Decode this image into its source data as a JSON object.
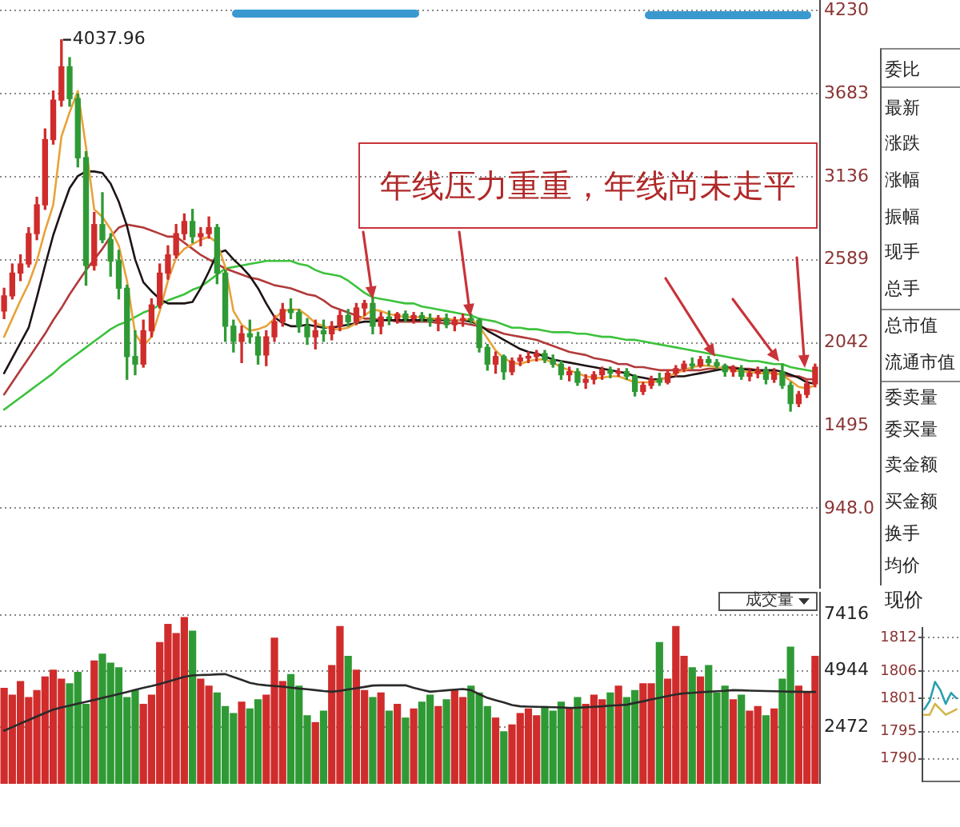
{
  "chart_data": [
    {
      "type": "candlestick",
      "categories": [
        null,
        null,
        null,
        null,
        null,
        null,
        null,
        null,
        null,
        null,
        null,
        null,
        null,
        null,
        null,
        null,
        null,
        null,
        null,
        null,
        null,
        null,
        null,
        null,
        null,
        null,
        null,
        null,
        null,
        null,
        null,
        null,
        null,
        null,
        null,
        null,
        null,
        null,
        null,
        null,
        null,
        null,
        null,
        null,
        null,
        null,
        null,
        null,
        null,
        null,
        null,
        null,
        null,
        null,
        null,
        null,
        null,
        null,
        null,
        null,
        null,
        null,
        null,
        null,
        null,
        null,
        null,
        null,
        null,
        null,
        null,
        null,
        null,
        null,
        null,
        null,
        null,
        null,
        null,
        null,
        null,
        null,
        null,
        null,
        null,
        null,
        null,
        null,
        null,
        null,
        null,
        null,
        null,
        null,
        null,
        null,
        null,
        null,
        null,
        null
      ],
      "ohlc": [
        [
          2250,
          2400,
          2200,
          2350
        ],
        [
          2350,
          2560,
          2330,
          2500
        ],
        [
          2500,
          2620,
          2450,
          2560
        ],
        [
          2560,
          2800,
          2540,
          2760
        ],
        [
          2760,
          3000,
          2720,
          2950
        ],
        [
          2950,
          3450,
          2920,
          3380
        ],
        [
          3380,
          3700,
          3350,
          3640
        ],
        [
          3640,
          4037.96,
          3600,
          3860
        ],
        [
          3860,
          3920,
          3600,
          3650
        ],
        [
          3650,
          3680,
          3200,
          3260
        ],
        [
          3260,
          3300,
          2420,
          2550
        ],
        [
          2550,
          2900,
          2520,
          2820
        ],
        [
          2820,
          3030,
          2700,
          2720
        ],
        [
          2720,
          2760,
          2480,
          2580
        ],
        [
          2580,
          2650,
          2330,
          2400
        ],
        [
          2400,
          2420,
          1800,
          1950
        ],
        [
          1950,
          2120,
          1830,
          1900
        ],
        [
          1900,
          2190,
          1880,
          2120
        ],
        [
          2120,
          2330,
          2080,
          2290
        ],
        [
          2290,
          2560,
          2270,
          2500
        ],
        [
          2500,
          2680,
          2460,
          2620
        ],
        [
          2620,
          2820,
          2600,
          2760
        ],
        [
          2760,
          2890,
          2720,
          2840
        ],
        [
          2840,
          2920,
          2700,
          2740
        ],
        [
          2740,
          2800,
          2680,
          2760
        ],
        [
          2760,
          2870,
          2730,
          2800
        ],
        [
          2800,
          2820,
          2430,
          2500
        ],
        [
          2500,
          2520,
          2050,
          2150
        ],
        [
          2150,
          2190,
          1980,
          2050
        ],
        [
          2050,
          2150,
          1910,
          2100
        ],
        [
          2100,
          2190,
          2040,
          2080
        ],
        [
          2080,
          2110,
          1900,
          1960
        ],
        [
          1960,
          2120,
          1890,
          2080
        ],
        [
          2080,
          2220,
          2050,
          2180
        ],
        [
          2180,
          2300,
          2150,
          2260
        ],
        [
          2260,
          2330,
          2200,
          2240
        ],
        [
          2240,
          2260,
          2110,
          2150
        ],
        [
          2150,
          2200,
          2030,
          2080
        ],
        [
          2080,
          2190,
          2000,
          2120
        ],
        [
          2120,
          2190,
          2050,
          2100
        ],
        [
          2100,
          2180,
          2060,
          2150
        ],
        [
          2150,
          2250,
          2120,
          2220
        ],
        [
          2220,
          2260,
          2150,
          2180
        ],
        [
          2180,
          2300,
          2160,
          2270
        ],
        [
          2270,
          2320,
          2220,
          2300
        ],
        [
          2300,
          2340,
          2100,
          2150
        ],
        [
          2150,
          2240,
          2100,
          2210
        ],
        [
          2210,
          2250,
          2160,
          2200
        ],
        [
          2200,
          2240,
          2170,
          2230
        ],
        [
          2230,
          2250,
          2180,
          2200
        ],
        [
          2200,
          2240,
          2170,
          2220
        ],
        [
          2220,
          2240,
          2180,
          2200
        ],
        [
          2200,
          2230,
          2150,
          2180
        ],
        [
          2180,
          2220,
          2120,
          2200
        ],
        [
          2200,
          2230,
          2140,
          2160
        ],
        [
          2160,
          2210,
          2120,
          2190
        ],
        [
          2190,
          2230,
          2150,
          2200
        ],
        [
          2200,
          2230,
          2170,
          2190
        ],
        [
          2190,
          2200,
          1980,
          2010
        ],
        [
          2010,
          2030,
          1860,
          1900
        ],
        [
          1900,
          1980,
          1840,
          1950
        ],
        [
          1950,
          1960,
          1800,
          1850
        ],
        [
          1850,
          1940,
          1830,
          1920
        ],
        [
          1920,
          1960,
          1890,
          1940
        ],
        [
          1940,
          1980,
          1910,
          1950
        ],
        [
          1950,
          1990,
          1920,
          1970
        ],
        [
          1970,
          1990,
          1910,
          1930
        ],
        [
          1930,
          1960,
          1880,
          1900
        ],
        [
          1900,
          1920,
          1800,
          1830
        ],
        [
          1830,
          1880,
          1790,
          1850
        ],
        [
          1850,
          1870,
          1760,
          1780
        ],
        [
          1780,
          1830,
          1740,
          1800
        ],
        [
          1800,
          1850,
          1770,
          1830
        ],
        [
          1830,
          1880,
          1800,
          1860
        ],
        [
          1860,
          1880,
          1810,
          1840
        ],
        [
          1840,
          1870,
          1820,
          1850
        ],
        [
          1850,
          1870,
          1800,
          1820
        ],
        [
          1820,
          1830,
          1690,
          1720
        ],
        [
          1720,
          1780,
          1700,
          1760
        ],
        [
          1760,
          1820,
          1740,
          1800
        ],
        [
          1800,
          1840,
          1760,
          1780
        ],
        [
          1780,
          1860,
          1770,
          1840
        ],
        [
          1840,
          1890,
          1820,
          1870
        ],
        [
          1870,
          1920,
          1850,
          1900
        ],
        [
          1900,
          1940,
          1870,
          1890
        ],
        [
          1890,
          1950,
          1880,
          1930
        ],
        [
          1930,
          1950,
          1890,
          1910
        ],
        [
          1910,
          1930,
          1870,
          1890
        ],
        [
          1890,
          1900,
          1820,
          1850
        ],
        [
          1850,
          1890,
          1820,
          1870
        ],
        [
          1870,
          1890,
          1800,
          1820
        ],
        [
          1820,
          1860,
          1790,
          1840
        ],
        [
          1840,
          1880,
          1810,
          1860
        ],
        [
          1860,
          1880,
          1770,
          1800
        ],
        [
          1800,
          1870,
          1780,
          1850
        ],
        [
          1850,
          1900,
          1740,
          1760
        ],
        [
          1760,
          1780,
          1590,
          1640
        ],
        [
          1640,
          1720,
          1620,
          1700
        ],
        [
          1700,
          1790,
          1680,
          1770
        ],
        [
          1770,
          1900,
          1750,
          1880
        ]
      ],
      "colors": [
        "#d02c2c",
        "#d02c2c",
        "#d02c2c",
        "#d02c2c",
        "#d02c2c",
        "#d02c2c",
        "#d02c2c",
        "#d02c2c",
        "#2f9a35",
        "#2f9a35",
        "#2f9a35",
        "#d02c2c",
        "#2f9a35",
        "#2f9a35",
        "#2f9a35",
        "#2f9a35",
        "#2f9a35",
        "#d02c2c",
        "#d02c2c",
        "#d02c2c",
        "#d02c2c",
        "#d02c2c",
        "#d02c2c",
        "#2f9a35",
        "#d02c2c",
        "#d02c2c",
        "#2f9a35",
        "#2f9a35",
        "#2f9a35",
        "#d02c2c",
        "#2f9a35",
        "#2f9a35",
        "#d02c2c",
        "#d02c2c",
        "#d02c2c",
        "#2f9a35",
        "#2f9a35",
        "#2f9a35",
        "#d02c2c",
        "#2f9a35",
        "#d02c2c",
        "#d02c2c",
        "#2f9a35",
        "#d02c2c",
        "#d02c2c",
        "#2f9a35",
        "#d02c2c",
        "#2f9a35",
        "#d02c2c",
        "#2f9a35",
        "#d02c2c",
        "#2f9a35",
        "#2f9a35",
        "#d02c2c",
        "#2f9a35",
        "#d02c2c",
        "#d02c2c",
        "#2f9a35",
        "#2f9a35",
        "#2f9a35",
        "#d02c2c",
        "#2f9a35",
        "#d02c2c",
        "#d02c2c",
        "#d02c2c",
        "#d02c2c",
        "#2f9a35",
        "#2f9a35",
        "#2f9a35",
        "#d02c2c",
        "#2f9a35",
        "#d02c2c",
        "#d02c2c",
        "#d02c2c",
        "#2f9a35",
        "#d02c2c",
        "#2f9a35",
        "#2f9a35",
        "#d02c2c",
        "#d02c2c",
        "#2f9a35",
        "#d02c2c",
        "#d02c2c",
        "#d02c2c",
        "#2f9a35",
        "#d02c2c",
        "#2f9a35",
        "#2f9a35",
        "#2f9a35",
        "#d02c2c",
        "#2f9a35",
        "#d02c2c",
        "#d02c2c",
        "#2f9a35",
        "#d02c2c",
        "#2f9a35",
        "#2f9a35",
        "#d02c2c",
        "#d02c2c",
        "#d02c2c"
      ],
      "series": [
        {
          "type": "line",
          "color": "#e8a23a",
          "values": [
            2080,
            2200,
            2320,
            2430,
            2580,
            2780,
            2950,
            3400,
            3560,
            3700,
            3330,
            2920,
            2870,
            2790,
            2680,
            2450,
            2100,
            2020,
            2080,
            2250,
            2450,
            2600,
            2660,
            2690,
            2720,
            2740,
            2700,
            2540,
            2250,
            2160,
            2120,
            2130,
            2150,
            2200,
            2250,
            2260,
            2260,
            2220,
            2170,
            2150,
            2130,
            2130,
            2140,
            2170,
            2220,
            2260,
            2250,
            2230,
            2220,
            2210,
            2210,
            2210,
            2200,
            2200,
            2200,
            2190,
            2190,
            2200,
            2150,
            2070,
            1990,
            1940,
            1910,
            1900,
            1920,
            1930,
            1930,
            1910,
            1880,
            1860,
            1840,
            1820,
            1810,
            1810,
            1820,
            1820,
            1800,
            1780,
            1780,
            1780,
            1790,
            1820,
            1840,
            1860,
            1880,
            1890,
            1890,
            1880,
            1870,
            1860,
            1850,
            1850,
            1840,
            1840,
            1840,
            1830,
            1790,
            1750,
            1740,
            1760
          ]
        },
        {
          "type": "line",
          "color": "#1e1414",
          "values": [
            1840,
            1940,
            2040,
            2140,
            2340,
            2550,
            2750,
            2910,
            3060,
            3140,
            3170,
            3170,
            3160,
            3090,
            2970,
            2810,
            2590,
            2440,
            2380,
            2330,
            2300,
            2300,
            2300,
            2310,
            2400,
            2510,
            2630,
            2650,
            2590,
            2540,
            2480,
            2400,
            2300,
            2210,
            2170,
            2150,
            2150,
            2160,
            2150,
            2140,
            2140,
            2150,
            2160,
            2170,
            2180,
            2180,
            2190,
            2190,
            2190,
            2190,
            2190,
            2190,
            2190,
            2190,
            2190,
            2190,
            2190,
            2180,
            2160,
            2120,
            2090,
            2060,
            2030,
            2000,
            1980,
            1970,
            1950,
            1930,
            1920,
            1910,
            1900,
            1890,
            1880,
            1870,
            1860,
            1850,
            1840,
            1820,
            1810,
            1800,
            1800,
            1810,
            1820,
            1820,
            1830,
            1840,
            1850,
            1860,
            1870,
            1870,
            1870,
            1860,
            1860,
            1860,
            1860,
            1850,
            1830,
            1810,
            1780,
            1770
          ]
        },
        {
          "type": "line",
          "color": "#b23a3a",
          "values": [
            1700,
            1780,
            1860,
            1940,
            2020,
            2100,
            2190,
            2270,
            2360,
            2440,
            2520,
            2590,
            2660,
            2740,
            2800,
            2820,
            2810,
            2800,
            2780,
            2760,
            2740,
            2740,
            2700,
            2660,
            2620,
            2590,
            2560,
            2530,
            2510,
            2490,
            2470,
            2460,
            2440,
            2420,
            2410,
            2400,
            2380,
            2360,
            2350,
            2320,
            2280,
            2260,
            2240,
            2220,
            2200,
            2200,
            2190,
            2190,
            2180,
            2180,
            2180,
            2180,
            2180,
            2170,
            2170,
            2170,
            2170,
            2160,
            2150,
            2130,
            2120,
            2100,
            2090,
            2080,
            2070,
            2060,
            2040,
            2020,
            2000,
            1980,
            1970,
            1960,
            1940,
            1930,
            1920,
            1900,
            1900,
            1880,
            1880,
            1870,
            1860,
            1860,
            1860,
            1860,
            1860,
            1860,
            1870,
            1870,
            1880,
            1880,
            1870,
            1870,
            1860,
            1850,
            1840,
            1830,
            1820,
            1820,
            1800,
            1800
          ]
        },
        {
          "type": "line",
          "color": "#3cc23c",
          "values": [
            1600,
            1640,
            1680,
            1720,
            1760,
            1800,
            1840,
            1890,
            1930,
            1970,
            2010,
            2050,
            2090,
            2130,
            2160,
            2180,
            2210,
            2240,
            2260,
            2290,
            2320,
            2340,
            2360,
            2390,
            2410,
            2450,
            2490,
            2530,
            2540,
            2550,
            2560,
            2570,
            2580,
            2580,
            2580,
            2580,
            2560,
            2550,
            2520,
            2500,
            2490,
            2480,
            2450,
            2410,
            2370,
            2340,
            2330,
            2320,
            2310,
            2300,
            2300,
            2280,
            2270,
            2260,
            2250,
            2240,
            2230,
            2220,
            2200,
            2190,
            2180,
            2160,
            2140,
            2140,
            2130,
            2130,
            2120,
            2110,
            2110,
            2110,
            2100,
            2100,
            2090,
            2080,
            2080,
            2070,
            2060,
            2060,
            2050,
            2040,
            2030,
            2020,
            2010,
            2000,
            1990,
            1980,
            1970,
            1960,
            1950,
            1940,
            1930,
            1920,
            1920,
            1910,
            1900,
            1900,
            1880,
            1870,
            1860,
            1850
          ]
        }
      ],
      "ylim": [
        420,
        4300
      ],
      "yticks": [
        {
          "value": 948,
          "label": "948.0"
        },
        1495,
        2042,
        2589,
        3136,
        3683,
        4230
      ],
      "grid": "y",
      "annotations": [
        "4037.96",
        "年线压力重重，年线尚未走平"
      ]
    },
    {
      "type": "bar",
      "title": "成交量",
      "categories": [
        null,
        null,
        null,
        null,
        null,
        null,
        null,
        null,
        null,
        null,
        null,
        null,
        null,
        null,
        null,
        null,
        null,
        null,
        null,
        null,
        null,
        null,
        null,
        null,
        null,
        null,
        null,
        null,
        null,
        null,
        null,
        null,
        null,
        null,
        null,
        null,
        null,
        null,
        null,
        null,
        null,
        null,
        null,
        null,
        null,
        null,
        null,
        null,
        null,
        null,
        null,
        null,
        null,
        null,
        null,
        null,
        null,
        null,
        null,
        null,
        null,
        null,
        null,
        null,
        null,
        null,
        null,
        null,
        null,
        null,
        null,
        null,
        null,
        null,
        null,
        null,
        null,
        null,
        null,
        null,
        null,
        null,
        null,
        null,
        null,
        null,
        null,
        null,
        null,
        null,
        null,
        null,
        null,
        null,
        null,
        null,
        null,
        null,
        null,
        null
      ],
      "series": [
        {
          "type": "bar",
          "values": [
            4200,
            3900,
            4500,
            3800,
            4100,
            4700,
            5000,
            4600,
            4400,
            4900,
            3500,
            5400,
            5700,
            5300,
            5100,
            3800,
            4100,
            3500,
            3900,
            6200,
            7000,
            6600,
            7300,
            6700,
            4600,
            4300,
            4000,
            3400,
            3100,
            3600,
            3300,
            3700,
            3900,
            6400,
            4500,
            4800,
            4300,
            3000,
            2700,
            3200,
            5200,
            6900,
            5600,
            5000,
            4100,
            3800,
            4000,
            3200,
            3500,
            2900,
            3300,
            3600,
            3900,
            3400,
            3700,
            4100,
            3800,
            4300,
            4000,
            3400,
            2900,
            2300,
            2600,
            3100,
            3300,
            3000,
            3400,
            3200,
            3600,
            3300,
            3800,
            3500,
            3900,
            3700,
            4000,
            4300,
            3800,
            4100,
            4400,
            4400,
            6200,
            4600,
            6900,
            5600,
            5100,
            4700,
            5200,
            4000,
            4300,
            3700,
            3900,
            3200,
            3400,
            3000,
            3300,
            4600,
            6000,
            4300,
            4000,
            5600
          ],
          "colors": [
            "#d02c2c",
            "#d02c2c",
            "#d02c2c",
            "#d02c2c",
            "#d02c2c",
            "#d02c2c",
            "#d02c2c",
            "#d02c2c",
            "#2f9a35",
            "#2f9a35",
            "#2f9a35",
            "#d02c2c",
            "#2f9a35",
            "#2f9a35",
            "#2f9a35",
            "#2f9a35",
            "#2f9a35",
            "#d02c2c",
            "#d02c2c",
            "#d02c2c",
            "#d02c2c",
            "#d02c2c",
            "#d02c2c",
            "#2f9a35",
            "#d02c2c",
            "#d02c2c",
            "#2f9a35",
            "#2f9a35",
            "#2f9a35",
            "#d02c2c",
            "#2f9a35",
            "#2f9a35",
            "#d02c2c",
            "#d02c2c",
            "#d02c2c",
            "#2f9a35",
            "#2f9a35",
            "#2f9a35",
            "#d02c2c",
            "#2f9a35",
            "#d02c2c",
            "#d02c2c",
            "#2f9a35",
            "#d02c2c",
            "#d02c2c",
            "#2f9a35",
            "#d02c2c",
            "#2f9a35",
            "#d02c2c",
            "#2f9a35",
            "#d02c2c",
            "#2f9a35",
            "#2f9a35",
            "#d02c2c",
            "#2f9a35",
            "#d02c2c",
            "#d02c2c",
            "#2f9a35",
            "#2f9a35",
            "#2f9a35",
            "#d02c2c",
            "#2f9a35",
            "#d02c2c",
            "#d02c2c",
            "#d02c2c",
            "#d02c2c",
            "#2f9a35",
            "#2f9a35",
            "#2f9a35",
            "#d02c2c",
            "#2f9a35",
            "#d02c2c",
            "#d02c2c",
            "#d02c2c",
            "#2f9a35",
            "#d02c2c",
            "#2f9a35",
            "#2f9a35",
            "#d02c2c",
            "#d02c2c",
            "#2f9a35",
            "#d02c2c",
            "#d02c2c",
            "#d02c2c",
            "#2f9a35",
            "#d02c2c",
            "#2f9a35",
            "#2f9a35",
            "#2f9a35",
            "#d02c2c",
            "#2f9a35",
            "#d02c2c",
            "#d02c2c",
            "#2f9a35",
            "#d02c2c",
            "#2f9a35",
            "#2f9a35",
            "#d02c2c",
            "#d02c2c",
            "#d02c2c"
          ]
        },
        {
          "type": "line",
          "color": "#2a2a2a",
          "values": [
            2330,
            2480,
            2640,
            2790,
            2950,
            3100,
            3250,
            3340,
            3420,
            3510,
            3590,
            3670,
            3760,
            3840,
            3930,
            4020,
            4110,
            4200,
            4280,
            4370,
            4470,
            4580,
            4680,
            4740,
            4760,
            4770,
            4790,
            4800,
            4670,
            4550,
            4420,
            4350,
            4310,
            4280,
            4250,
            4210,
            4170,
            4140,
            4100,
            4060,
            4030,
            4070,
            4130,
            4180,
            4240,
            4300,
            4310,
            4310,
            4310,
            4310,
            4200,
            4110,
            4030,
            4060,
            4090,
            4120,
            4150,
            4100,
            3920,
            3760,
            3660,
            3560,
            3450,
            3390,
            3380,
            3370,
            3360,
            3350,
            3340,
            3320,
            3330,
            3350,
            3370,
            3390,
            3420,
            3440,
            3460,
            3540,
            3610,
            3690,
            3760,
            3840,
            3910,
            3960,
            3980,
            4010,
            4030,
            4050,
            4070,
            4100,
            4090,
            4080,
            4070,
            4060,
            4050,
            4040,
            4030,
            4030,
            4020,
            4020
          ]
        }
      ],
      "ylim": [
        0,
        8400
      ],
      "yticks": [
        2472,
        4944,
        7416
      ],
      "grid": "y"
    },
    {
      "type": "other",
      "annotations": [
        "委比",
        "最新",
        "涨跌",
        "涨幅",
        "振幅",
        "现手",
        "总手",
        "总市值",
        "流通市值",
        "委卖量",
        "委买量",
        "卖金额",
        "买金额",
        "换手",
        "均价"
      ]
    },
    {
      "type": "line",
      "title": "现价",
      "categories": [
        null,
        null,
        null,
        null,
        null,
        null,
        null,
        null,
        null,
        null,
        null,
        null,
        null,
        null,
        null,
        null,
        null,
        null,
        null,
        null,
        null,
        null,
        null,
        null,
        null,
        null,
        null,
        null,
        null,
        null,
        null,
        null,
        null,
        null,
        null,
        null,
        null
      ],
      "series": [
        {
          "color": "#2aa0b0",
          "values": [
            1799,
            1800.5,
            1804,
            1802.5,
            1800,
            1802,
            1801,
            null,
            null,
            null,
            null,
            null,
            null,
            null,
            null,
            null,
            null,
            null,
            null,
            null,
            null,
            null,
            null,
            null,
            null,
            null,
            null,
            null,
            null,
            null,
            null,
            null,
            null,
            null,
            null,
            null,
            null
          ]
        },
        {
          "color": "#d2b648",
          "values": [
            1798,
            1798,
            1800,
            1799,
            1798,
            1798.5,
            1799,
            null,
            null,
            null,
            null,
            null,
            null,
            null,
            null,
            null,
            null,
            null,
            null,
            null,
            null,
            null,
            null,
            null,
            null,
            null,
            null,
            null,
            null,
            null,
            null,
            null,
            null,
            null,
            null,
            null,
            null
          ]
        }
      ],
      "ylim": [
        1786,
        1814
      ],
      "yticks": [
        1790,
        1795,
        1801,
        1806,
        1812
      ],
      "grid": "y"
    }
  ]
}
